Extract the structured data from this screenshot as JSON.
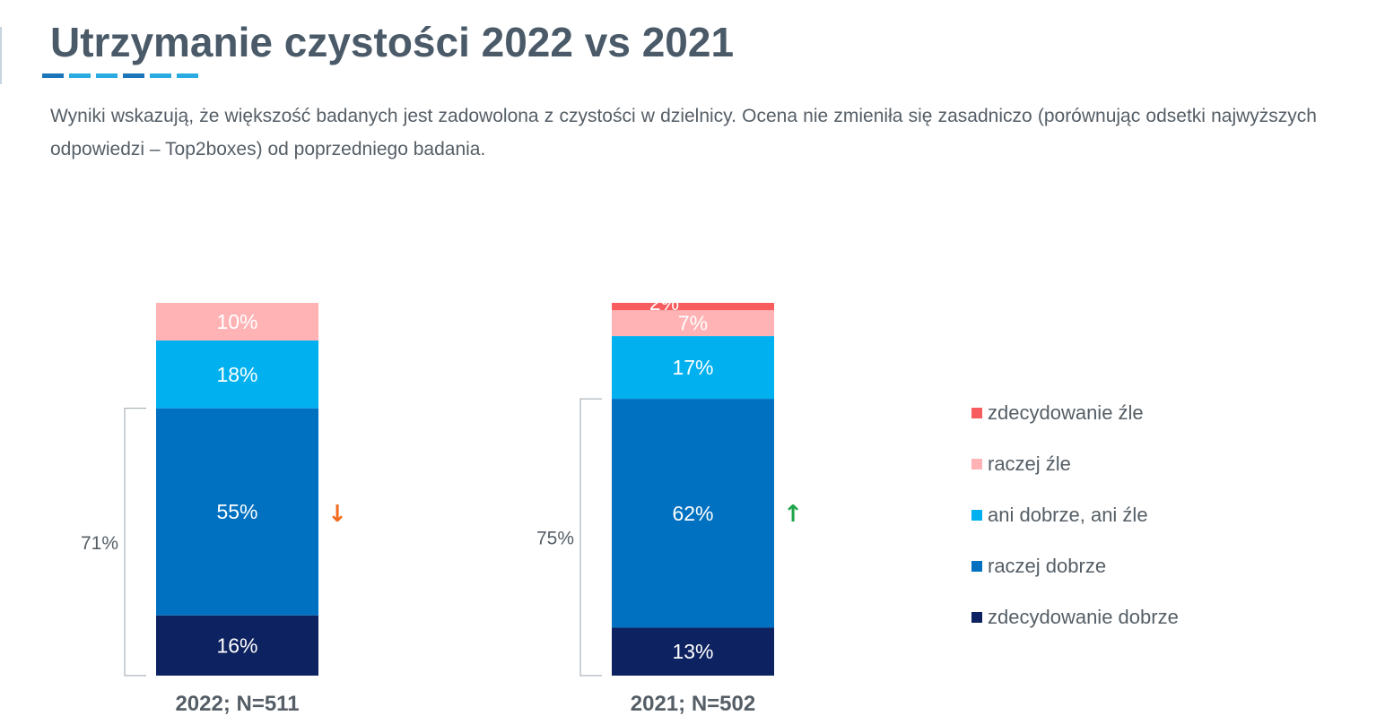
{
  "title": "Utrzymanie czystości 2022 vs 2021",
  "description": "Wyniki wskazują, że większość badanych jest zadowolona z czystości w dzielnicy. Ocena nie zmieniła się zasadniczo (porównując odsetki najwyższych odpowiedzi – Top2boxes) od poprzedniego badania.",
  "title_underline_colors": [
    "#1b75bb",
    "#29abe2",
    "#29abe2",
    "#1b75bb",
    "#29abe2",
    "#29abe2"
  ],
  "chart_data": {
    "type": "bar",
    "stacked": true,
    "categories": [
      "2022; N=511",
      "2021; N=502"
    ],
    "series": [
      {
        "name": "zdecydowanie dobrze",
        "color": "#0d2260",
        "values": [
          16,
          13
        ],
        "labels": [
          "16%",
          "13%"
        ]
      },
      {
        "name": "raczej dobrze",
        "color": "#0071c1",
        "values": [
          55,
          62
        ],
        "labels": [
          "55%",
          "62%"
        ]
      },
      {
        "name": "ani dobrze, ani źle",
        "color": "#00b0ef",
        "values": [
          18,
          17
        ],
        "labels": [
          "18%",
          "17%"
        ]
      },
      {
        "name": "raczej źle",
        "color": "#ffb3b5",
        "values": [
          10,
          7
        ],
        "labels": [
          "10%",
          "7%"
        ]
      },
      {
        "name": "zdecydowanie źle",
        "color": "#f75c5f",
        "values": [
          0,
          2
        ],
        "labels": [
          "",
          "2%"
        ]
      }
    ],
    "top2boxes": {
      "values": [
        71,
        75
      ],
      "labels": [
        "71%",
        "75%"
      ]
    },
    "trend": [
      {
        "direction": "down",
        "glyph": "↓",
        "color": "#f26b21"
      },
      {
        "direction": "up",
        "glyph": "↑",
        "color": "#1fa34a"
      }
    ],
    "legend_order": [
      "zdecydowanie źle",
      "raczej źle",
      "ani dobrze, ani źle",
      "raczej dobrze",
      "zdecydowanie dobrze"
    ],
    "legend_position": "right",
    "ylim": [
      0,
      100
    ],
    "grid": false,
    "title": "",
    "xlabel": "",
    "ylabel": ""
  }
}
